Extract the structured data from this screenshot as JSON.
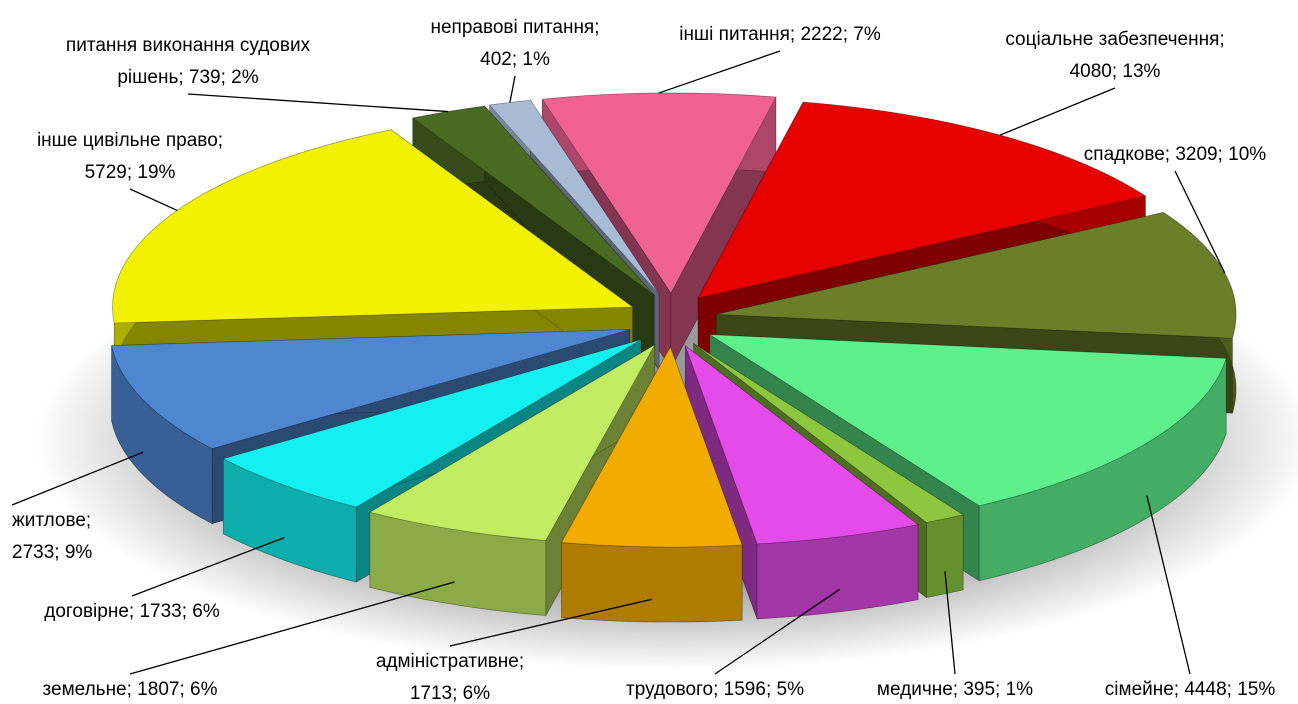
{
  "chart_data": {
    "type": "pie",
    "values": [
      2222,
      4080,
      3209,
      4448,
      395,
      1596,
      1713,
      1807,
      1733,
      2733,
      5729,
      739,
      402
    ],
    "value_labels": [
      [
        "інші питання; 2222; 7%"
      ],
      [
        "соціальне забезпечення;",
        "4080; 13%"
      ],
      [
        "спадкове; 3209; 10%"
      ],
      [
        "сімейне; 4448; 15%"
      ],
      [
        "медичне; 395; 1%"
      ],
      [
        "трудового; 1596; 5%"
      ],
      [
        "адміністративне;",
        "1713; 6%"
      ],
      [
        "земельне; 1807; 6%"
      ],
      [
        "договірне; 1733; 6%"
      ],
      [
        "житлове;",
        "2733; 9%"
      ],
      [
        "інше цивільне право;",
        "5729; 19%"
      ],
      [
        "питання виконання судових",
        "рішень; 739; 2%"
      ],
      [
        "неправові питання;",
        "402; 1%"
      ]
    ],
    "colors": [
      "#f06292",
      "#e60000",
      "#6b7f2a",
      "#5ef08c",
      "#8dc63f",
      "#e34ce8",
      "#f2ac00",
      "#c2ec62",
      "#14f0f0",
      "#4f86d0",
      "#f2f200",
      "#4a6a22",
      "#a8bcd8"
    ]
  }
}
